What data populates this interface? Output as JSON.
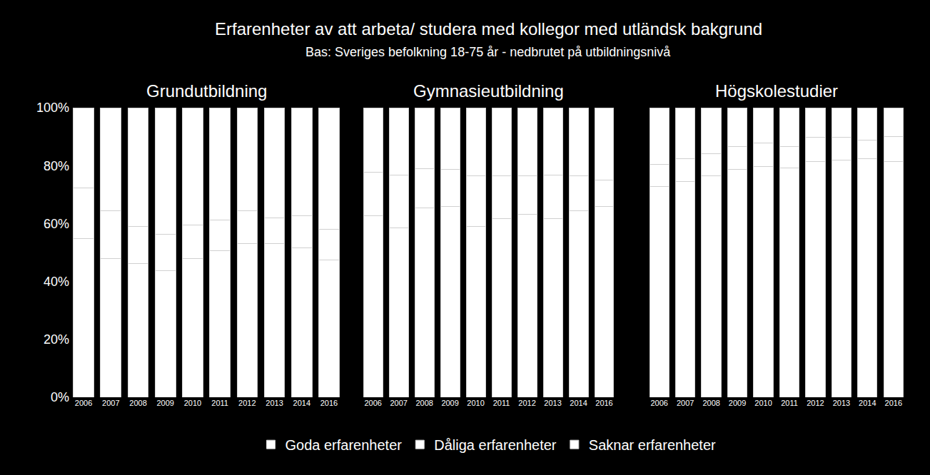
{
  "title": "Erfarenheter av att arbeta/ studera med kollegor med utländsk bakgrund",
  "subtitle": "Bas: Sveriges befolkning 18-75 år - nedbrutet på utbildningsnivå",
  "chart_data": [
    {
      "type": "bar",
      "title": "Grundutbildning",
      "stacked": true,
      "grid": false,
      "legend": "bottom",
      "tick_labels": true,
      "categories": [
        "2006",
        "2007",
        "2008",
        "2009",
        "2010",
        "2011",
        "2012",
        "2013",
        "2014",
        "2016"
      ],
      "ylim": [
        0,
        100
      ],
      "yticks": [
        {
          "value": 0,
          "label": "0%"
        },
        {
          "value": 20,
          "label": "20%"
        },
        {
          "value": 40,
          "label": "40%"
        },
        {
          "value": 60,
          "label": "60%"
        },
        {
          "value": 80,
          "label": "80%"
        },
        {
          "value": 100,
          "label": "100%"
        }
      ],
      "series": [
        {
          "name": "Goda erfarenheter",
          "color": "#ffffff",
          "values": [
            54.7,
            48.0,
            46.3,
            43.6,
            48.0,
            50.5,
            53.0,
            53.2,
            51.7,
            47.3
          ]
        },
        {
          "name": "Dåliga erfarenheter",
          "color": "#ffffff",
          "values": [
            17.7,
            16.3,
            12.6,
            12.8,
            11.6,
            10.8,
            11.5,
            8.8,
            11.1,
            10.6
          ]
        },
        {
          "name": "Saknar erfarenheter",
          "color": "#ffffff",
          "values": [
            27.6,
            35.7,
            41.1,
            43.6,
            40.4,
            38.7,
            35.5,
            38.0,
            37.2,
            42.1
          ]
        }
      ]
    },
    {
      "type": "bar",
      "title": "Gymnasieutbildning",
      "stacked": true,
      "grid": false,
      "tick_labels": "x",
      "categories": [
        "2006",
        "2007",
        "2008",
        "2009",
        "2010",
        "2011",
        "2012",
        "2013",
        "2014",
        "2016"
      ],
      "ylim": [
        0,
        100
      ],
      "yticks": [
        {
          "value": 0,
          "label": "0%"
        },
        {
          "value": 20,
          "label": "20%"
        },
        {
          "value": 40,
          "label": "40%"
        },
        {
          "value": 60,
          "label": "60%"
        },
        {
          "value": 80,
          "label": "80%"
        },
        {
          "value": 100,
          "label": "100%"
        }
      ],
      "series": [
        {
          "name": "Goda erfarenheter",
          "color": "#ffffff",
          "values": [
            62.6,
            58.4,
            65.3,
            65.8,
            59.0,
            61.8,
            63.3,
            61.6,
            64.3,
            65.8
          ]
        },
        {
          "name": "Dåliga erfarenheter",
          "color": "#ffffff",
          "values": [
            15.2,
            18.4,
            13.7,
            13.0,
            17.4,
            14.6,
            13.1,
            15.2,
            12.1,
            9.1
          ]
        },
        {
          "name": "Saknar erfarenheter",
          "color": "#ffffff",
          "values": [
            22.2,
            23.2,
            21.0,
            21.2,
            23.6,
            23.6,
            23.6,
            23.2,
            23.6,
            25.1
          ]
        }
      ]
    },
    {
      "type": "bar",
      "title": "Högskolestudier",
      "stacked": true,
      "grid": false,
      "tick_labels": "x",
      "categories": [
        "2006",
        "2007",
        "2008",
        "2009",
        "2010",
        "2011",
        "2012",
        "2013",
        "2014",
        "2016"
      ],
      "ylim": [
        0,
        100
      ],
      "yticks": [
        {
          "value": 0,
          "label": "0%"
        },
        {
          "value": 20,
          "label": "20%"
        },
        {
          "value": 40,
          "label": "40%"
        },
        {
          "value": 60,
          "label": "60%"
        },
        {
          "value": 80,
          "label": "80%"
        },
        {
          "value": 100,
          "label": "100%"
        }
      ],
      "series": [
        {
          "name": "Goda erfarenheter",
          "color": "#ffffff",
          "values": [
            72.7,
            74.6,
            76.4,
            78.8,
            79.8,
            79.3,
            81.3,
            81.8,
            82.5,
            81.5
          ]
        },
        {
          "name": "Dåliga erfarenheter",
          "color": "#ffffff",
          "values": [
            7.6,
            7.9,
            7.8,
            7.9,
            8.1,
            7.4,
            8.6,
            7.9,
            6.2,
            8.6
          ]
        },
        {
          "name": "Saknar erfarenheter",
          "color": "#ffffff",
          "values": [
            19.7,
            17.5,
            15.8,
            13.3,
            12.1,
            13.3,
            10.1,
            10.3,
            11.3,
            9.9
          ]
        }
      ]
    }
  ]
}
